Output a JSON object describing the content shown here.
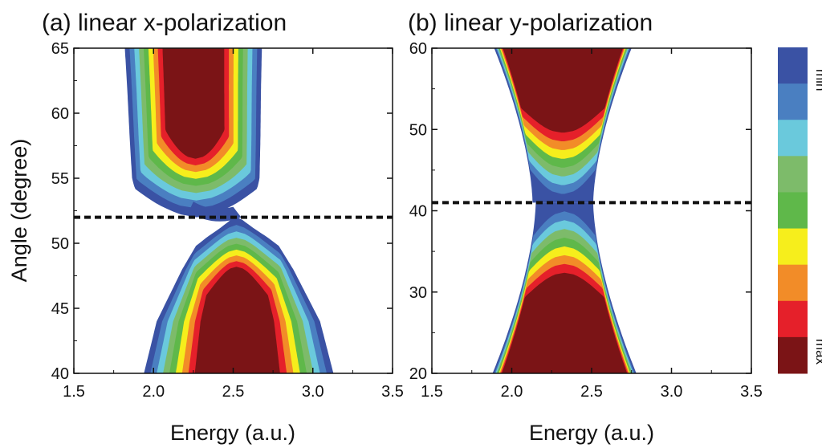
{
  "chart_data": [
    {
      "type": "heatmap",
      "panel": "a",
      "title": "(a) linear x-polarization",
      "xlabel": "Energy (a.u.)",
      "ylabel": "Angle (degree)",
      "xlim": [
        1.5,
        3.5
      ],
      "ylim": [
        40,
        65
      ],
      "xticks": [
        1.5,
        2.0,
        2.5,
        3.0,
        3.5
      ],
      "xtick_labels": [
        "1.5",
        "2.0",
        "2.5",
        "3.0",
        "3.5"
      ],
      "yticks": [
        40,
        45,
        50,
        55,
        60,
        65
      ],
      "ytick_labels": [
        "40",
        "45",
        "50",
        "55",
        "60",
        "65"
      ],
      "dashed_line_y": 52,
      "contours": [
        {
          "name": "upper-lobe",
          "center_x": 2.27,
          "half_width": [
            0.3,
            0.36,
            0.4,
            0.41,
            0.42,
            0.43
          ],
          "half_width_angles": [
            52.0,
            53.0,
            55.0,
            58.0,
            62.0,
            65.0
          ],
          "min_angle": 52.0,
          "max_angle": 65.0,
          "max_level": 56.5
        },
        {
          "name": "lower-lobe",
          "center_x": 2.52,
          "half_width": [
            0.1,
            0.22,
            0.34,
            0.5,
            0.58
          ],
          "half_width_angles": [
            52.0,
            50.5,
            48.0,
            44.0,
            40.0
          ],
          "min_angle": 40.0,
          "max_angle": 52.0,
          "max_level": 48.2
        }
      ]
    },
    {
      "type": "heatmap",
      "panel": "b",
      "title": "(b) linear y-polarization",
      "xlabel": "Energy (a.u.)",
      "xlim": [
        1.5,
        3.5
      ],
      "ylim": [
        20,
        60
      ],
      "xticks": [
        1.5,
        2.0,
        2.5,
        3.0,
        3.5
      ],
      "xtick_labels": [
        "1.5",
        "2.0",
        "2.5",
        "3.0",
        "3.5"
      ],
      "yticks": [
        20,
        30,
        40,
        50,
        60
      ],
      "ytick_labels": [
        "20",
        "30",
        "40",
        "50",
        "60"
      ],
      "dashed_line_y": 41,
      "center_x": 2.33,
      "neck_angle": 41,
      "neck_half_width": 0.18,
      "top_half_width": 0.42,
      "bottom_half_width": 0.45,
      "max_upper_min_angle": 49.8,
      "max_lower_max_angle": 32.2
    }
  ],
  "colorbar": {
    "labels": {
      "min": "min",
      "max": "max"
    },
    "levels": [
      "#3a52a4",
      "#4a7fc1",
      "#6ac9dc",
      "#7dbb6a",
      "#5fb84a",
      "#f6ee1c",
      "#f28c28",
      "#e5202a",
      "#7b1416"
    ]
  },
  "colors": {
    "level_outer_to_inner": [
      "#3a52a4",
      "#4a7fc1",
      "#6ac9dc",
      "#7dbb6a",
      "#5fb84a",
      "#f6ee1c",
      "#f28c28",
      "#e5202a",
      "#7b1416"
    ],
    "background": "#ffffff",
    "axis": "#111111"
  }
}
